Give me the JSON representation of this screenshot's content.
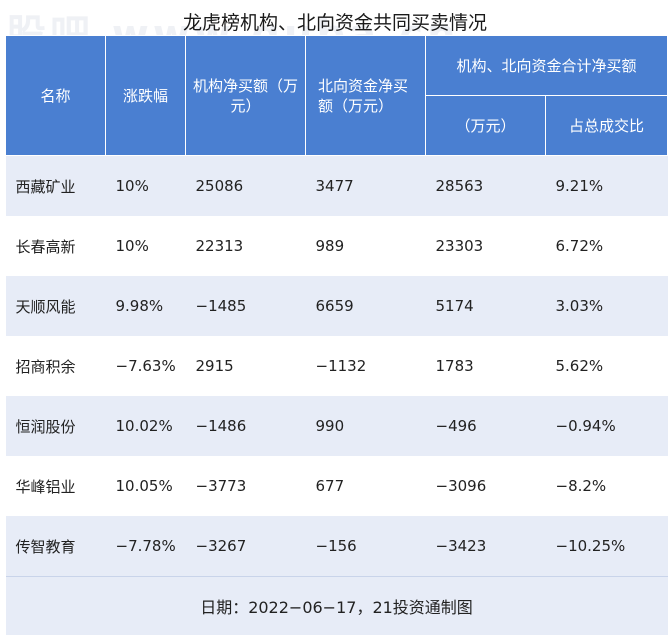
{
  "title": "龙虎榜机构、北向资金共同买卖情况",
  "watermark": "股吧 www.guba.cn",
  "headers": {
    "name": "名称",
    "change": "涨跌幅",
    "inst": "机构净买额（万元）",
    "north": "北向资金净买额（万元）",
    "combined_group": "机构、北向资金合计净买额",
    "combined": "（万元）",
    "ratio": "占总成交比"
  },
  "rows": [
    {
      "name": "西藏矿业",
      "change": "10%",
      "inst": "25086",
      "north": "3477",
      "combined": "28563",
      "ratio": "9.21%"
    },
    {
      "name": "长春高新",
      "change": "10%",
      "inst": "22313",
      "north": "989",
      "combined": "23303",
      "ratio": "6.72%"
    },
    {
      "name": "天顺风能",
      "change": "9.98%",
      "inst": "−1485",
      "north": "6659",
      "combined": "5174",
      "ratio": "3.03%"
    },
    {
      "name": "招商积余",
      "change": "−7.63%",
      "inst": "2915",
      "north": "−1132",
      "combined": "1783",
      "ratio": "5.62%"
    },
    {
      "name": "恒润股份",
      "change": "10.02%",
      "inst": "−1486",
      "north": "990",
      "combined": "−496",
      "ratio": "−0.94%"
    },
    {
      "name": "华峰铝业",
      "change": "10.05%",
      "inst": "−3773",
      "north": "677",
      "combined": "−3096",
      "ratio": "−8.2%"
    },
    {
      "name": "传智教育",
      "change": "−7.78%",
      "inst": "−3267",
      "north": "−156",
      "combined": "−3423",
      "ratio": "−10.25%"
    }
  ],
  "footer": "日期：2022−06−17，21投资通制图",
  "colors": {
    "header_bg": "#4a7fd1",
    "row_alt_bg": "#e7ecf7",
    "header_text": "#ffffff"
  }
}
